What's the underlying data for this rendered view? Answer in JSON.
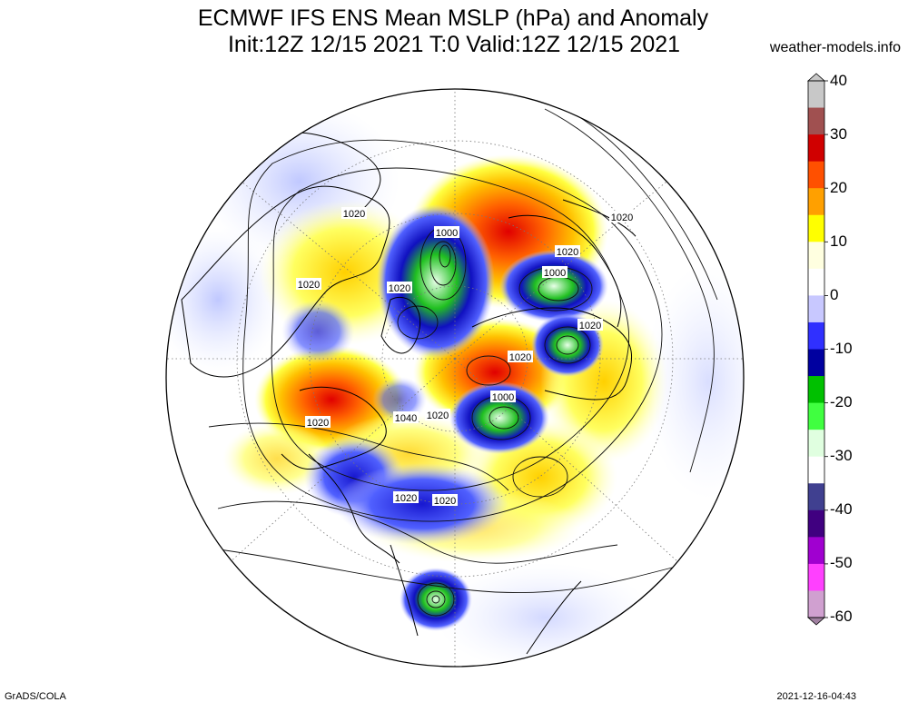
{
  "header": {
    "title_line1": "ECMWF IFS ENS Mean MSLP (hPa) and Anomaly",
    "title_line2": "Init:12Z 12/15 2021  T:0 Valid:12Z 12/15 2021",
    "source_site": "weather-models.info"
  },
  "footer": {
    "software_credit": "GrADS/COLA",
    "generated_timestamp": "2021-12-16-04:43"
  },
  "colorbar": {
    "ticks": [
      "40",
      "30",
      "20",
      "10",
      "0",
      "-10",
      "-20",
      "-30",
      "-40",
      "-50",
      "-60"
    ],
    "colors_top_to_bottom": [
      "#c8c8c8",
      "#a05050",
      "#d00000",
      "#ff5000",
      "#ffa000",
      "#ffff00",
      "#ffffe0",
      "#ffffff",
      "#c8c8ff",
      "#3030ff",
      "#0000a0",
      "#00c000",
      "#40ff40",
      "#e0ffe0",
      "#ffffff",
      "#404090",
      "#400080",
      "#a000d0",
      "#ff40ff",
      "#d0a0d0"
    ]
  },
  "map": {
    "projection": "north-polar-stereographic",
    "isobar_labels": [
      {
        "text": "1020"
      },
      {
        "text": "1020"
      },
      {
        "text": "1020"
      },
      {
        "text": "1000"
      },
      {
        "text": "1020"
      },
      {
        "text": "1000"
      },
      {
        "text": "1020"
      },
      {
        "text": "1020"
      },
      {
        "text": "1020"
      },
      {
        "text": "1000"
      },
      {
        "text": "1020"
      },
      {
        "text": "1040"
      },
      {
        "text": "1020"
      },
      {
        "text": "1020"
      },
      {
        "text": "1020"
      }
    ],
    "colors": {
      "high_anomaly": "#ff8000",
      "strong_high": "#e00000",
      "low_anomaly": "#2020e0",
      "strong_low": "#00b000",
      "neutral": "#ffffff"
    }
  }
}
